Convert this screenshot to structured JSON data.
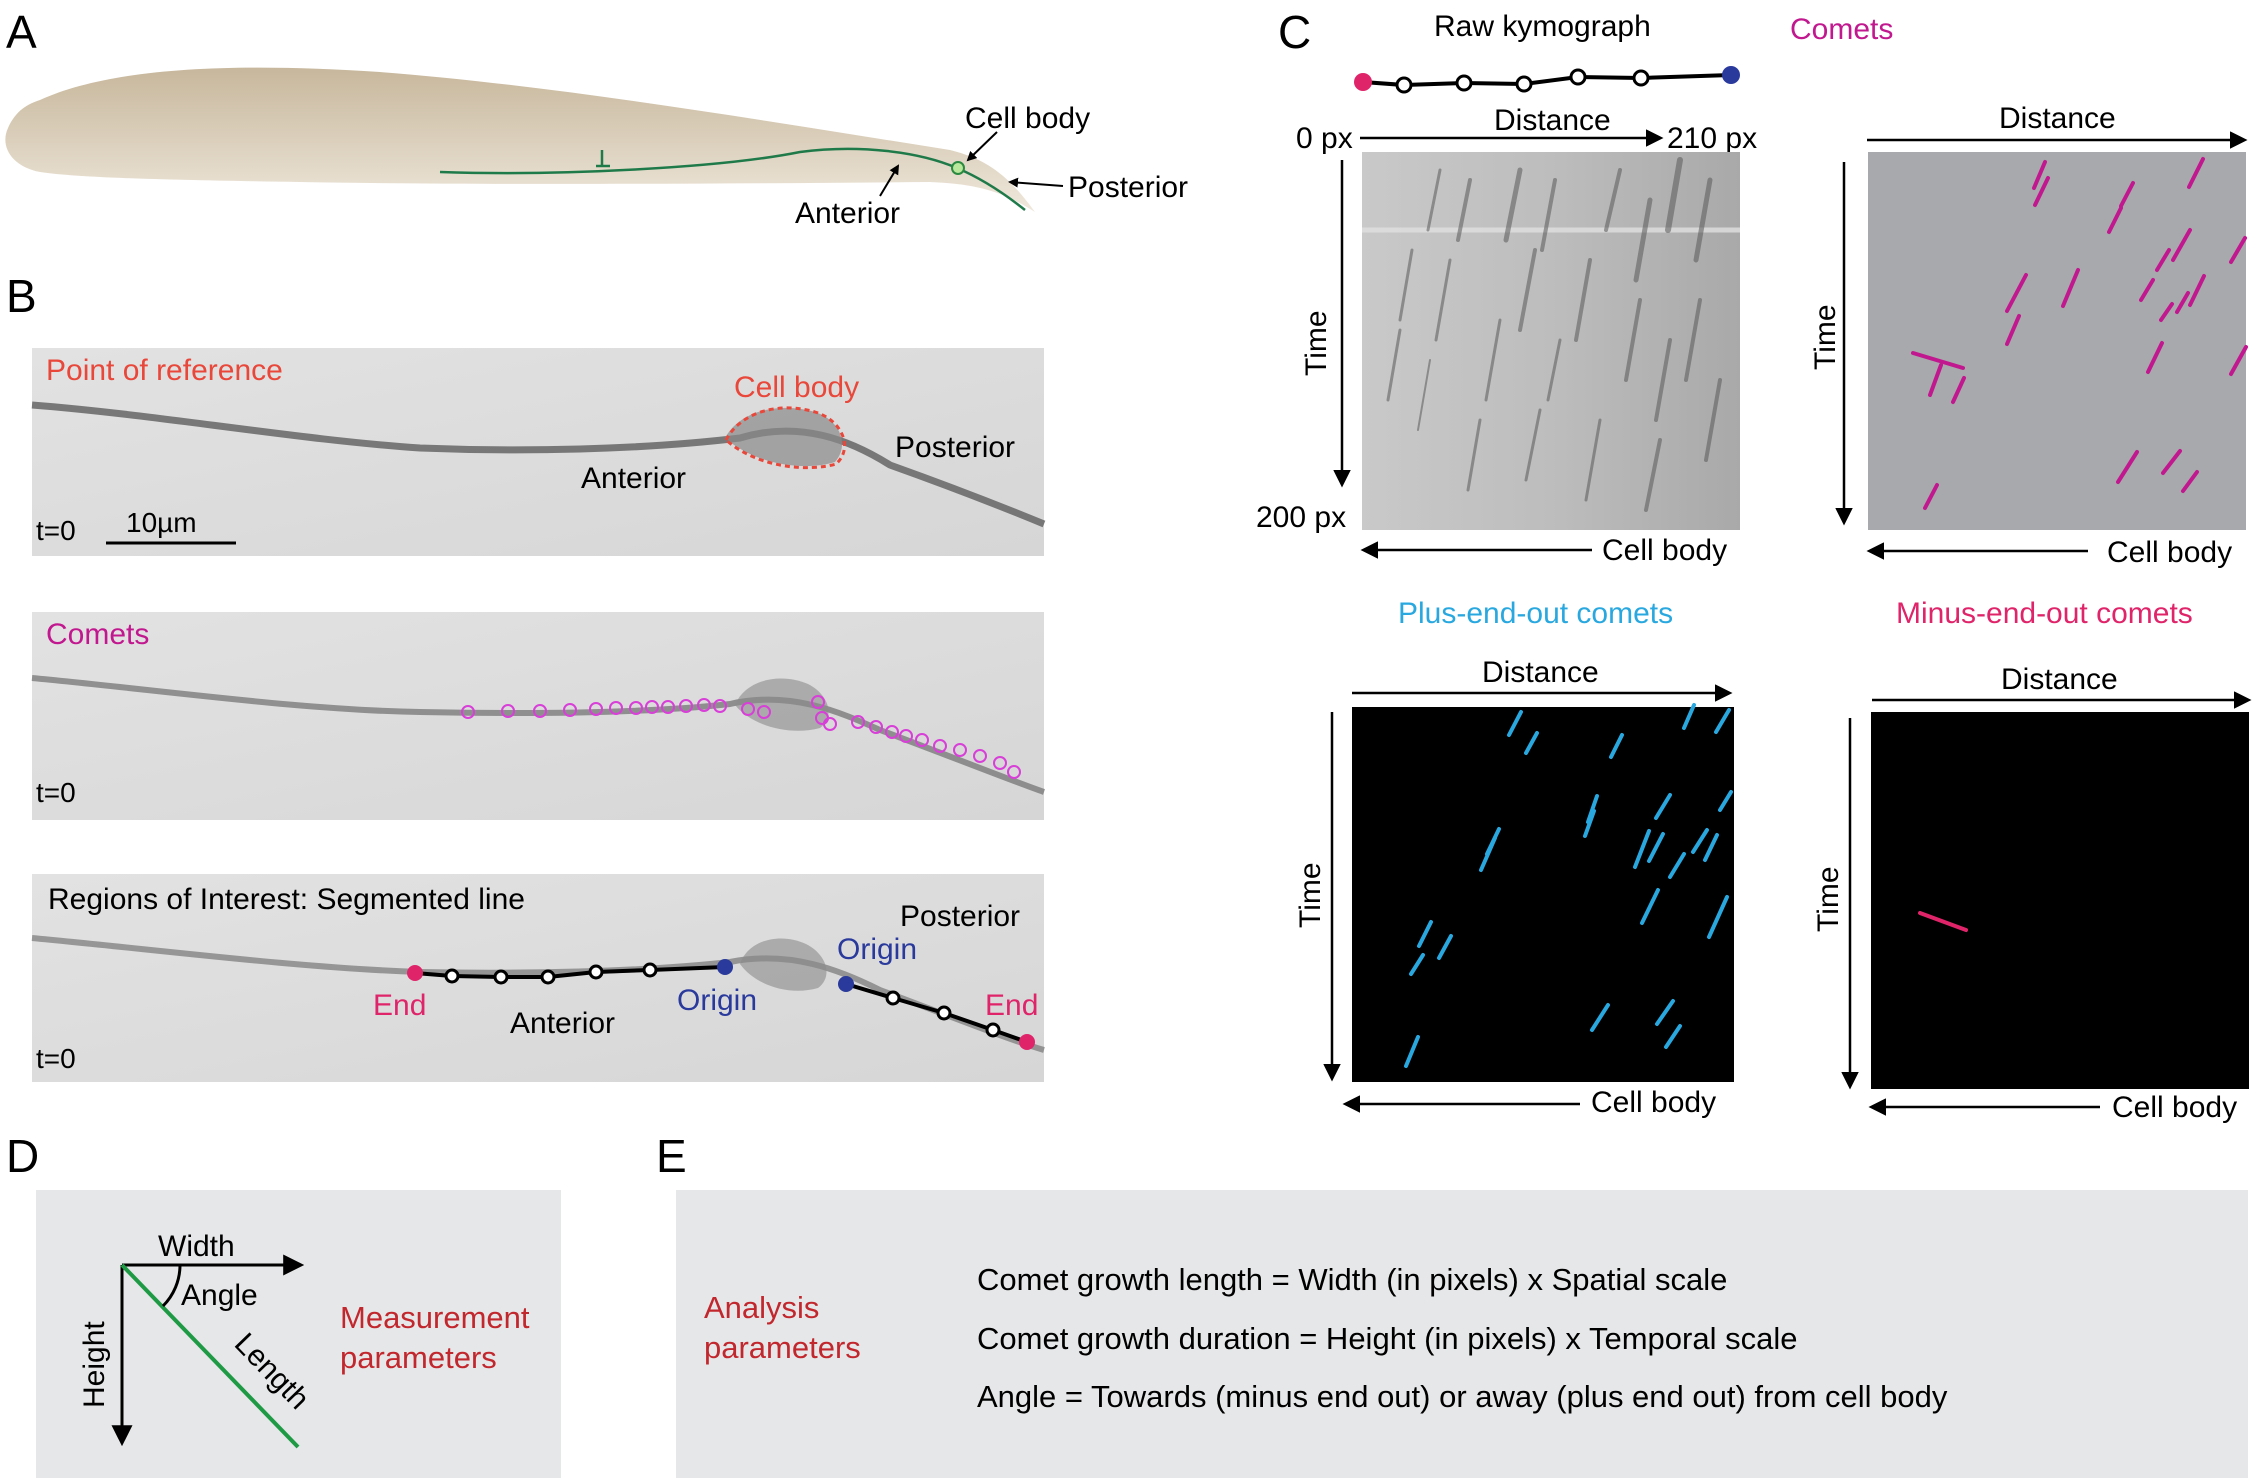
{
  "panel_letters": {
    "a": "A",
    "b": "B",
    "c": "C",
    "d": "D",
    "e": "E"
  },
  "panel_a": {
    "cell_body": "Cell body",
    "anterior": "Anterior",
    "posterior": "Posterior"
  },
  "panel_b": {
    "img1": {
      "title": "Point of reference",
      "cell_body": "Cell body",
      "anterior": "Anterior",
      "posterior": "Posterior",
      "time": "t=0",
      "scale_label": "10µm"
    },
    "img2": {
      "title": "Comets",
      "time": "t=0"
    },
    "img3": {
      "title": "Regions of Interest: Segmented line",
      "posterior": "Posterior",
      "origin": "Origin",
      "end": "End",
      "anterior": "Anterior",
      "time": "t=0"
    }
  },
  "panel_c": {
    "raw": {
      "title": "Raw kymograph",
      "distance": "Distance",
      "x_start": "0 px",
      "x_end": "210 px",
      "time": "Time",
      "y_end": "200 px",
      "cell_body": "Cell body"
    },
    "comets": {
      "title": "Comets",
      "distance": "Distance",
      "time": "Time",
      "cell_body": "Cell body"
    },
    "plus": {
      "title": "Plus-end-out comets",
      "distance": "Distance",
      "time": "Time",
      "cell_body": "Cell body"
    },
    "minus": {
      "title": "Minus-end-out comets",
      "distance": "Distance",
      "time": "Time",
      "cell_body": "Cell body"
    }
  },
  "panel_d": {
    "width": "Width",
    "angle": "Angle",
    "height": "Height",
    "length": "Length",
    "caption_line1": "Measurement",
    "caption_line2": "parameters"
  },
  "panel_e": {
    "caption_line1": "Analysis",
    "caption_line2": "parameters",
    "lines": [
      "Comet growth length = Width (in pixels) x Spatial scale",
      "Comet growth duration = Height (in pixels) x Temporal scale",
      "Angle = Towards (minus end out) or away (plus end out) from cell body"
    ]
  },
  "colors": {
    "red_label": "#e8473a",
    "magenta": "#c2188f",
    "cyan": "#29a8e0",
    "pink": "#e0246a",
    "blue": "#2a3a9c",
    "dark_red": "#c1272d",
    "green": "#1e9a45"
  }
}
